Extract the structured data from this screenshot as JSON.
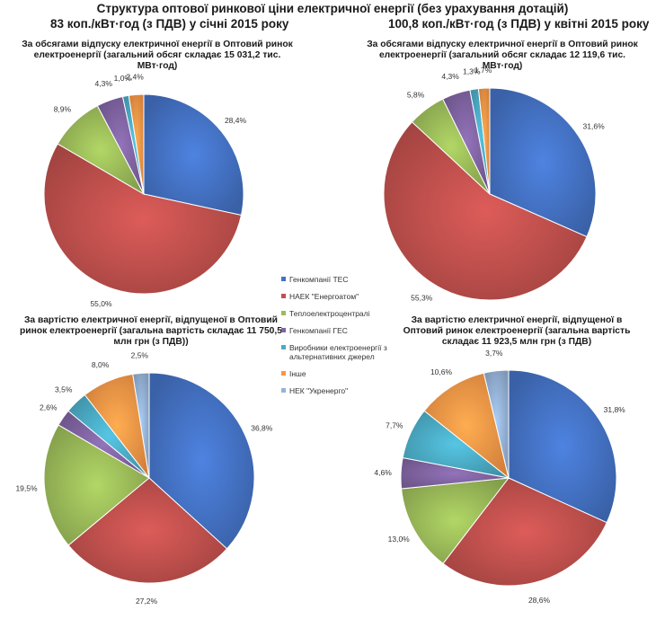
{
  "title": "Структура оптової ринкової ціни електричної енергії (без урахування дотацій)",
  "subtitles": {
    "left": "83 коп./кВт·год (з ПДВ)  у січні 2015 року",
    "right": "100,8 коп./кВт·год (з ПДВ) у квітні 2015 року"
  },
  "legend": [
    {
      "name": "Генкомпанії ТЕС",
      "color": "#4472C4"
    },
    {
      "name": "НАЕК \"Енергоатом\"",
      "color": "#C0504D"
    },
    {
      "name": "Теплоелектроцентралі",
      "color": "#9BBB59"
    },
    {
      "name": "Генкомпанії ГЕС",
      "color": "#8064A2"
    },
    {
      "name": "Виробники електроенергії з альтернативних джерел",
      "color": "#4BACC6"
    },
    {
      "name": "Інше",
      "color": "#F79646"
    },
    {
      "name": "НЕК \"Укренерго\"",
      "color": "#95B3D7"
    }
  ],
  "chart_data": [
    {
      "type": "pie",
      "title": "За обсягами відпуску електричної енергії в Оптовий ринок електроенергії (загальний обсяг складає 15 031,2 тис. МВт·год)",
      "categories": [
        "Генкомпанії ТЕС",
        "НАЕК \"Енергоатом\"",
        "Теплоелектроцентралі",
        "Генкомпанії ГЕС",
        "Виробники електроенергії з альтернативних джерел",
        "Інше",
        "НЕК \"Укренерго\""
      ],
      "values": [
        28.4,
        55.0,
        8.9,
        4.3,
        1.0,
        2.4,
        0
      ],
      "labels": [
        "28,4%",
        "55,0%",
        "8,9%",
        "4,3%",
        "1,0%",
        "2,4%",
        ""
      ]
    },
    {
      "type": "pie",
      "title": "За обсягами відпуску електричної енергії в Оптовий ринок електроенергії (загальний обсяг складає 12 119,6 тис. МВт·год)",
      "categories": [
        "Генкомпанії ТЕС",
        "НАЕК \"Енергоатом\"",
        "Теплоелектроцентралі",
        "Генкомпанії ГЕС",
        "Виробники електроенергії з альтернативних джерел",
        "Інше",
        "НЕК \"Укренерго\""
      ],
      "values": [
        31.6,
        55.3,
        5.8,
        4.3,
        1.3,
        1.7,
        0
      ],
      "labels": [
        "31,6%",
        "55,3%",
        "5,8%",
        "4,3%",
        "1,3%",
        "1,7%",
        ""
      ]
    },
    {
      "type": "pie",
      "title": "За вартістю електричної енергії, відпущеної в Оптовий ринок електроенергії (загальна вартість складає 11 750,5 млн грн (з ПДВ))",
      "categories": [
        "Генкомпанії ТЕС",
        "НАЕК \"Енергоатом\"",
        "Теплоелектроцентралі",
        "Генкомпанії ГЕС",
        "Виробники електроенергії з альтернативних джерел",
        "Інше",
        "НЕК \"Укренерго\""
      ],
      "values": [
        36.8,
        27.2,
        19.5,
        2.6,
        3.5,
        8.0,
        2.5
      ],
      "labels": [
        "36,8%",
        "27,2%",
        "19,5%",
        "2,6%",
        "3,5%",
        "8,0%",
        "2,5%"
      ]
    },
    {
      "type": "pie",
      "title": "За вартістю електричної енергії, відпущеної в Оптовий ринок електроенергії (загальна вартість складає 11 923,5 млн грн (з ПДВ)",
      "categories": [
        "Генкомпанії ТЕС",
        "НАЕК \"Енергоатом\"",
        "Теплоелектроцентралі",
        "Генкомпанії ГЕС",
        "Виробники електроенергії з альтернативних джерел",
        "Інше",
        "НЕК \"Укренерго\""
      ],
      "values": [
        31.8,
        28.6,
        13.0,
        4.6,
        7.7,
        10.6,
        3.7
      ],
      "labels": [
        "31,8%",
        "28,6%",
        "13,0%",
        "4,6%",
        "7,7%",
        "10,6%",
        "3,7%"
      ]
    }
  ]
}
